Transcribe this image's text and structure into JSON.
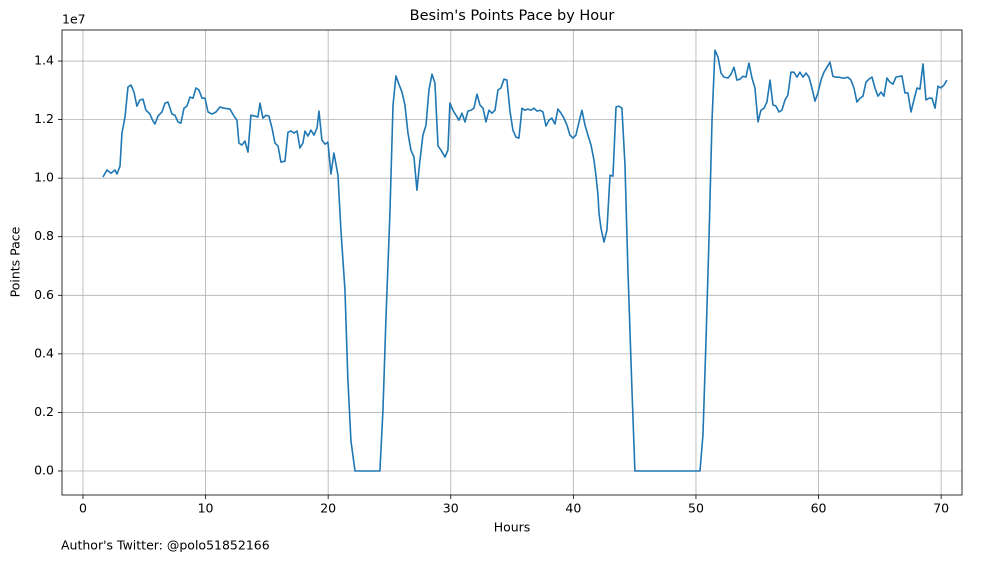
{
  "chart_data": {
    "type": "line",
    "title": "Besim's Points Pace by Hour",
    "x_label": "Hours",
    "y_label": "Points Pace",
    "y_offset_label": "1e7",
    "footer": "Author's Twitter: @polo51852166",
    "color": "#1f77b4",
    "grid": true,
    "xlim": [
      -1.71,
      71.7
    ],
    "ylim": [
      -0.082,
      1.506
    ],
    "xticks": [
      0,
      10,
      20,
      30,
      40,
      50,
      60,
      70
    ],
    "yticks": [
      {
        "value": 0,
        "label": "0.0"
      },
      0.2,
      0.4,
      0.6,
      0.8,
      {
        "value": 1,
        "label": "1.0"
      },
      1.2,
      1.4
    ],
    "x": [
      1.63,
      1.96,
      2.28,
      2.61,
      2.77,
      3.02,
      3.18,
      3.43,
      3.67,
      3.92,
      4.16,
      4.4,
      4.65,
      4.89,
      5.14,
      5.46,
      5.71,
      5.87,
      6.12,
      6.44,
      6.69,
      6.93,
      7.26,
      7.5,
      7.75,
      7.99,
      8.24,
      8.48,
      8.73,
      8.97,
      9.22,
      9.46,
      9.71,
      9.95,
      10.2,
      10.52,
      10.85,
      11.17,
      11.5,
      11.99,
      12.32,
      12.56,
      12.72,
      12.97,
      13.21,
      13.46,
      13.7,
      14.03,
      14.27,
      14.44,
      14.68,
      14.93,
      15.17,
      15.42,
      15.66,
      15.91,
      16.15,
      16.48,
      16.72,
      16.97,
      17.21,
      17.46,
      17.7,
      17.94,
      18.11,
      18.35,
      18.6,
      18.84,
      19.09,
      19.25,
      19.49,
      19.74,
      19.98,
      20.23,
      20.47,
      20.8,
      21.04,
      21.37,
      21.61,
      21.86,
      22.19,
      24.22,
      24.47,
      24.71,
      25.04,
      25.29,
      25.53,
      25.77,
      26.02,
      26.26,
      26.51,
      26.75,
      27,
      27.24,
      27.49,
      27.73,
      27.98,
      28.22,
      28.47,
      28.71,
      28.96,
      29.2,
      29.53,
      29.77,
      29.93,
      30.18,
      30.42,
      30.67,
      30.91,
      31.16,
      31.4,
      31.65,
      31.89,
      32.14,
      32.38,
      32.63,
      32.87,
      33.12,
      33.36,
      33.61,
      33.85,
      34.09,
      34.34,
      34.58,
      34.83,
      35.07,
      35.32,
      35.56,
      35.81,
      36.05,
      36.3,
      36.54,
      36.79,
      37.03,
      37.28,
      37.52,
      37.77,
      38.01,
      38.25,
      38.5,
      38.74,
      38.99,
      39.23,
      39.48,
      39.72,
      39.97,
      40.21,
      40.46,
      40.7,
      40.95,
      41.19,
      41.44,
      41.68,
      41.84,
      42.01,
      42.09,
      42.25,
      42.5,
      42.74,
      42.99,
      43.23,
      43.48,
      43.72,
      43.96,
      44.21,
      44.45,
      44.78,
      45.02,
      50.33,
      50.57,
      50.82,
      51.06,
      51.31,
      51.55,
      51.8,
      52.04,
      52.28,
      52.61,
      52.86,
      53.1,
      53.34,
      53.59,
      53.83,
      54.08,
      54.32,
      54.57,
      54.81,
      55.06,
      55.3,
      55.55,
      55.79,
      56.04,
      56.28,
      56.53,
      56.77,
      57.01,
      57.26,
      57.5,
      57.75,
      57.99,
      58.24,
      58.48,
      58.73,
      58.97,
      59.22,
      59.46,
      59.71,
      59.95,
      60.2,
      60.44,
      60.69,
      60.93,
      61.17,
      61.42,
      61.66,
      61.91,
      62.15,
      62.4,
      62.64,
      62.89,
      63.13,
      63.38,
      63.62,
      63.87,
      64.11,
      64.36,
      64.6,
      64.85,
      65.09,
      65.33,
      65.58,
      65.82,
      66.07,
      66.31,
      66.8,
      67.05,
      67.29,
      67.54,
      67.78,
      68.03,
      68.27,
      68.52,
      68.76,
      69.01,
      69.25,
      69.5,
      69.74,
      69.98,
      70.23,
      70.47
    ],
    "values": [
      1.004,
      1.028,
      1.017,
      1.028,
      1.014,
      1.041,
      1.154,
      1.209,
      1.311,
      1.318,
      1.294,
      1.246,
      1.267,
      1.27,
      1.232,
      1.219,
      1.195,
      1.185,
      1.212,
      1.226,
      1.256,
      1.26,
      1.219,
      1.215,
      1.192,
      1.188,
      1.239,
      1.246,
      1.277,
      1.273,
      1.308,
      1.301,
      1.273,
      1.273,
      1.226,
      1.219,
      1.226,
      1.243,
      1.239,
      1.236,
      1.212,
      1.198,
      1.12,
      1.113,
      1.127,
      1.089,
      1.215,
      1.212,
      1.209,
      1.256,
      1.205,
      1.215,
      1.212,
      1.171,
      1.12,
      1.11,
      1.055,
      1.058,
      1.157,
      1.161,
      1.154,
      1.161,
      1.103,
      1.12,
      1.161,
      1.144,
      1.164,
      1.147,
      1.171,
      1.229,
      1.13,
      1.116,
      1.123,
      1.014,
      1.086,
      1.01,
      0.823,
      0.618,
      0.311,
      0.102,
      0,
      0,
      0.208,
      0.516,
      0.884,
      1.25,
      1.349,
      1.321,
      1.294,
      1.25,
      1.154,
      1.096,
      1.072,
      0.959,
      1.062,
      1.147,
      1.181,
      1.301,
      1.355,
      1.325,
      1.11,
      1.096,
      1.072,
      1.096,
      1.256,
      1.232,
      1.215,
      1.198,
      1.222,
      1.192,
      1.229,
      1.232,
      1.239,
      1.287,
      1.25,
      1.239,
      1.192,
      1.232,
      1.222,
      1.232,
      1.301,
      1.308,
      1.338,
      1.335,
      1.229,
      1.164,
      1.14,
      1.137,
      1.239,
      1.232,
      1.236,
      1.232,
      1.239,
      1.229,
      1.232,
      1.226,
      1.178,
      1.198,
      1.205,
      1.185,
      1.236,
      1.222,
      1.205,
      1.181,
      1.147,
      1.137,
      1.147,
      1.192,
      1.232,
      1.181,
      1.147,
      1.113,
      1.062,
      1.01,
      0.942,
      0.881,
      0.83,
      0.782,
      0.823,
      1.01,
      1.007,
      1.243,
      1.246,
      1.239,
      1.045,
      0.686,
      0.277,
      0,
      0,
      0.123,
      0.447,
      0.789,
      1.198,
      1.437,
      1.413,
      1.359,
      1.345,
      1.342,
      1.355,
      1.379,
      1.335,
      1.338,
      1.348,
      1.345,
      1.393,
      1.342,
      1.308,
      1.192,
      1.232,
      1.239,
      1.26,
      1.335,
      1.25,
      1.246,
      1.226,
      1.232,
      1.267,
      1.284,
      1.362,
      1.362,
      1.345,
      1.362,
      1.345,
      1.359,
      1.345,
      1.308,
      1.263,
      1.291,
      1.335,
      1.362,
      1.379,
      1.396,
      1.348,
      1.345,
      1.345,
      1.342,
      1.342,
      1.345,
      1.335,
      1.308,
      1.26,
      1.273,
      1.28,
      1.328,
      1.338,
      1.345,
      1.308,
      1.28,
      1.294,
      1.28,
      1.342,
      1.328,
      1.321,
      1.345,
      1.349,
      1.291,
      1.291,
      1.226,
      1.267,
      1.308,
      1.304,
      1.39,
      1.267,
      1.273,
      1.273,
      1.239,
      1.314,
      1.308,
      1.318,
      1.335
    ]
  }
}
